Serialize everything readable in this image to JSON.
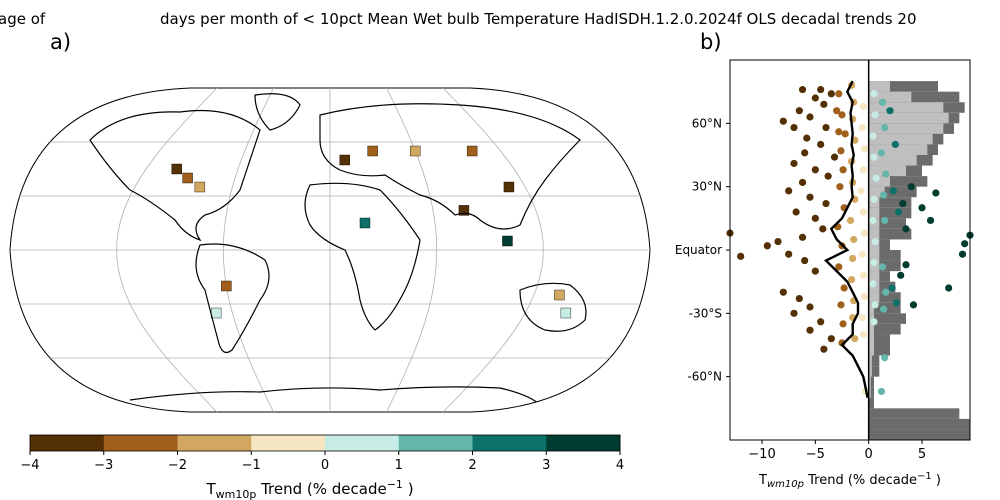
{
  "titles": {
    "left_fragment": "age of",
    "main": "days per month of < 10pct Mean Wet bulb Temperature HadISDH.1.2.0.2024f OLS decadal trends 20"
  },
  "panels": {
    "a": "a)",
    "b": "b)"
  },
  "colors": {
    "bins": [
      "#543005",
      "#a05f1a",
      "#d2a860",
      "#f6e6c3",
      "#c7ebe5",
      "#64b5aa",
      "#0c7168",
      "#003c30"
    ],
    "land_coast": "#000000",
    "grid": "#b0b0b0",
    "hist_dark": "#6b6b6b",
    "hist_light": "#bfbfbf"
  },
  "chart_data": [
    {
      "type": "heatmap",
      "panel": "a)",
      "description_of_content": "Gridded global map of decadal trends",
      "colorbar": {
        "ticks": [
          "−4",
          "−3",
          "−2",
          "−1",
          "0",
          "1",
          "2",
          "3",
          "4"
        ],
        "bounds": [
          -4,
          -3,
          -2,
          -1,
          0,
          1,
          2,
          3,
          4
        ],
        "label_main": "T",
        "label_sub": "wm10p",
        "label_rest": " Trend (% decade",
        "label_sup": "−1",
        "label_end": " )"
      },
      "sample_cells": [
        {
          "lon": -100,
          "lat": 45,
          "value": -3.5
        },
        {
          "lon": -90,
          "lat": 40,
          "value": -2.5
        },
        {
          "lon": -80,
          "lat": 35,
          "value": -1.5
        },
        {
          "lon": 10,
          "lat": 50,
          "value": -3.5
        },
        {
          "lon": 30,
          "lat": 55,
          "value": -2.5
        },
        {
          "lon": 60,
          "lat": 55,
          "value": -1.5
        },
        {
          "lon": 100,
          "lat": 55,
          "value": -2.5
        },
        {
          "lon": 110,
          "lat": 35,
          "value": -3.5
        },
        {
          "lon": 78,
          "lat": 22,
          "value": -3.5
        },
        {
          "lon": -60,
          "lat": -20,
          "value": -2.5
        },
        {
          "lon": -70,
          "lat": -35,
          "value": 0.5
        },
        {
          "lon": 135,
          "lat": -25,
          "value": -1.5
        },
        {
          "lon": 145,
          "lat": -35,
          "value": 0.5
        },
        {
          "lon": 20,
          "lat": 15,
          "value": 2.5
        },
        {
          "lon": 100,
          "lat": 5,
          "value": 3.5
        }
      ]
    },
    {
      "type": "scatter",
      "panel": "b)",
      "xlabel_main": "T",
      "xlabel_sub": "wm10p",
      "xlabel_rest": " Trend (% decade",
      "xlabel_sup": "−1",
      "xlabel_end": " )",
      "xlim": [
        -13,
        9.5
      ],
      "ylim": [
        -90,
        90
      ],
      "xticks": [
        {
          "value": -10,
          "label": "−10"
        },
        {
          "value": -5,
          "label": "−5"
        },
        {
          "value": 0,
          "label": "0"
        },
        {
          "value": 5,
          "label": "5"
        }
      ],
      "yticks": [
        {
          "value": 60,
          "label": "60°N"
        },
        {
          "value": 30,
          "label": "30°N"
        },
        {
          "value": 0,
          "label": "Equator"
        },
        {
          "value": -30,
          "label": "-30°S"
        },
        {
          "value": -60,
          "label": "-60°N"
        }
      ],
      "zonal_mean_line": {
        "lat": [
          80,
          75,
          70,
          65,
          60,
          55,
          50,
          45,
          40,
          35,
          30,
          25,
          20,
          15,
          10,
          5,
          0,
          -5,
          -10,
          -15,
          -20,
          -25,
          -30,
          -35,
          -40,
          -45,
          -50,
          -55,
          -60,
          -65,
          -70
        ],
        "x": [
          -1.5,
          -2.0,
          -1.5,
          -1.7,
          -1.6,
          -1.5,
          -1.6,
          -1.4,
          -1.6,
          -1.5,
          -1.6,
          -1.5,
          -2.0,
          -2.5,
          -3.5,
          -3.0,
          -2.0,
          -4.0,
          -3.0,
          -2.0,
          -1.5,
          -1.0,
          -1.0,
          -1.5,
          -1.5,
          -2.5,
          -1.5,
          -1.0,
          -0.5,
          -0.3,
          -0.1
        ]
      },
      "histogram": {
        "dark_lat_bins": [
          [
            80,
            75
          ],
          [
            75,
            70
          ],
          [
            70,
            65
          ],
          [
            65,
            60
          ],
          [
            60,
            55
          ],
          [
            55,
            50
          ],
          [
            50,
            45
          ],
          [
            45,
            40
          ],
          [
            40,
            35
          ],
          [
            35,
            30
          ],
          [
            30,
            25
          ],
          [
            25,
            20
          ],
          [
            20,
            15
          ],
          [
            15,
            10
          ],
          [
            10,
            5
          ],
          [
            5,
            0
          ],
          [
            0,
            -5
          ],
          [
            -5,
            -10
          ],
          [
            -10,
            -15
          ],
          [
            -15,
            -20
          ],
          [
            -20,
            -25
          ],
          [
            -25,
            -30
          ],
          [
            -30,
            -35
          ],
          [
            -35,
            -40
          ],
          [
            -40,
            -45
          ],
          [
            -45,
            -50
          ],
          [
            -50,
            -55
          ],
          [
            -55,
            -60
          ],
          [
            -60,
            -65
          ],
          [
            -65,
            -70
          ],
          [
            -70,
            -75
          ],
          [
            -75,
            -80
          ],
          [
            -80,
            -85
          ],
          [
            -85,
            -90
          ]
        ],
        "dark_x": [
          6.5,
          8.5,
          9.0,
          8.5,
          8.0,
          7.0,
          6.5,
          6.0,
          5.0,
          5.5,
          4.5,
          4.0,
          4.0,
          3.5,
          4.0,
          2.0,
          3.0,
          3.0,
          2.0,
          2.5,
          3.0,
          3.0,
          3.5,
          3.0,
          2.0,
          2.0,
          1.0,
          1.0,
          0.5,
          0.5,
          0.5,
          8.5,
          9.5,
          9.5
        ],
        "light_x": [
          2.0,
          4.0,
          7.0,
          7.5,
          7.0,
          6.0,
          5.5,
          4.5,
          3.5,
          2.0,
          1.5,
          1.0,
          1.0,
          1.0,
          1.0,
          1.0,
          1.0,
          1.0,
          1.0,
          1.0,
          1.0,
          0.5,
          0.5,
          0.5,
          0.5,
          0.5,
          0.3,
          0.3,
          0.2,
          0.2,
          0,
          0,
          0,
          0
        ]
      },
      "points": [
        {
          "x": -6.2,
          "y": 76
        },
        {
          "x": -4.5,
          "y": 76
        },
        {
          "x": -3.5,
          "y": 74
        },
        {
          "x": -5.0,
          "y": 72
        },
        {
          "x": -4.2,
          "y": 69
        },
        {
          "x": -6.5,
          "y": 66
        },
        {
          "x": -3.0,
          "y": 66
        },
        {
          "x": -8.0,
          "y": 61
        },
        {
          "x": -5.5,
          "y": 63
        },
        {
          "x": -7.0,
          "y": 58
        },
        {
          "x": -4.0,
          "y": 58
        },
        {
          "x": -2.8,
          "y": 56
        },
        {
          "x": -5.8,
          "y": 53
        },
        {
          "x": -4.5,
          "y": 50
        },
        {
          "x": -6.0,
          "y": 46
        },
        {
          "x": -3.2,
          "y": 44
        },
        {
          "x": -7.0,
          "y": 41
        },
        {
          "x": -5.0,
          "y": 38
        },
        {
          "x": -3.8,
          "y": 35
        },
        {
          "x": -6.2,
          "y": 32
        },
        {
          "x": -7.5,
          "y": 28
        },
        {
          "x": -5.5,
          "y": 25
        },
        {
          "x": -4.0,
          "y": 22
        },
        {
          "x": -6.8,
          "y": 18
        },
        {
          "x": -5.0,
          "y": 15
        },
        {
          "x": -4.3,
          "y": 10
        },
        {
          "x": -6.2,
          "y": 6
        },
        {
          "x": -8.5,
          "y": 4
        },
        {
          "x": -13.0,
          "y": 8
        },
        {
          "x": -12.0,
          "y": -3
        },
        {
          "x": -9.5,
          "y": 2
        },
        {
          "x": -7.5,
          "y": -2
        },
        {
          "x": -6.0,
          "y": -5
        },
        {
          "x": -5.0,
          "y": -10
        },
        {
          "x": -8.0,
          "y": -20
        },
        {
          "x": -6.5,
          "y": -23
        },
        {
          "x": -5.5,
          "y": -27
        },
        {
          "x": -7.0,
          "y": -30
        },
        {
          "x": -4.5,
          "y": -34
        },
        {
          "x": -5.5,
          "y": -38
        },
        {
          "x": -3.5,
          "y": -42
        },
        {
          "x": -4.2,
          "y": -47
        },
        {
          "x": -2.8,
          "y": 74
        },
        {
          "x": -2.5,
          "y": 64
        },
        {
          "x": -2.2,
          "y": 55
        },
        {
          "x": -2.6,
          "y": 47
        },
        {
          "x": -2.4,
          "y": 38
        },
        {
          "x": -2.7,
          "y": 30
        },
        {
          "x": -2.3,
          "y": 20
        },
        {
          "x": -2.9,
          "y": 11
        },
        {
          "x": -2.5,
          "y": 2
        },
        {
          "x": -2.8,
          "y": -8
        },
        {
          "x": -2.3,
          "y": -18
        },
        {
          "x": -2.6,
          "y": -26
        },
        {
          "x": -2.4,
          "y": -35
        },
        {
          "x": -2.5,
          "y": -44
        },
        {
          "x": -1.6,
          "y": 78
        },
        {
          "x": -1.4,
          "y": 70
        },
        {
          "x": -1.5,
          "y": 62
        },
        {
          "x": -1.3,
          "y": 52
        },
        {
          "x": -1.6,
          "y": 42
        },
        {
          "x": -1.5,
          "y": 32
        },
        {
          "x": -1.3,
          "y": 24
        },
        {
          "x": -1.7,
          "y": 14
        },
        {
          "x": -1.4,
          "y": 5
        },
        {
          "x": -1.5,
          "y": -4
        },
        {
          "x": -1.6,
          "y": -14
        },
        {
          "x": -1.4,
          "y": -24
        },
        {
          "x": -1.5,
          "y": -32
        },
        {
          "x": -1.3,
          "y": -42
        },
        {
          "x": -0.3,
          "y": -67
        },
        {
          "x": -0.5,
          "y": 68
        },
        {
          "x": -0.6,
          "y": 58
        },
        {
          "x": -0.4,
          "y": 48
        },
        {
          "x": -0.5,
          "y": 38
        },
        {
          "x": -0.7,
          "y": 28
        },
        {
          "x": -0.5,
          "y": 18
        },
        {
          "x": -0.4,
          "y": 8
        },
        {
          "x": -0.6,
          "y": -2
        },
        {
          "x": -0.5,
          "y": -12
        },
        {
          "x": -0.4,
          "y": -22
        },
        {
          "x": -0.6,
          "y": -32
        },
        {
          "x": -0.5,
          "y": -40
        },
        {
          "x": 0.5,
          "y": 74
        },
        {
          "x": 0.6,
          "y": 64
        },
        {
          "x": 0.4,
          "y": 54
        },
        {
          "x": 0.5,
          "y": 44
        },
        {
          "x": 0.7,
          "y": 34
        },
        {
          "x": 0.5,
          "y": 24
        },
        {
          "x": 0.4,
          "y": 14
        },
        {
          "x": 0.6,
          "y": 4
        },
        {
          "x": 0.5,
          "y": -6
        },
        {
          "x": 0.4,
          "y": -16
        },
        {
          "x": 0.6,
          "y": -26
        },
        {
          "x": 0.5,
          "y": -34
        },
        {
          "x": 1.3,
          "y": 70
        },
        {
          "x": 1.5,
          "y": 58
        },
        {
          "x": 1.2,
          "y": 46
        },
        {
          "x": 1.6,
          "y": 36
        },
        {
          "x": 1.4,
          "y": 26
        },
        {
          "x": 1.5,
          "y": 14
        },
        {
          "x": 1.3,
          "y": -8
        },
        {
          "x": 1.6,
          "y": -20
        },
        {
          "x": 1.4,
          "y": -28
        },
        {
          "x": 1.5,
          "y": -51
        },
        {
          "x": 1.2,
          "y": -67
        },
        {
          "x": 2.0,
          "y": 66
        },
        {
          "x": 2.5,
          "y": 50
        },
        {
          "x": 2.3,
          "y": 28
        },
        {
          "x": 2.8,
          "y": 18
        },
        {
          "x": 2.2,
          "y": -18
        },
        {
          "x": 2.6,
          "y": -25
        },
        {
          "x": 3.2,
          "y": 22
        },
        {
          "x": 3.5,
          "y": 10
        },
        {
          "x": 3.0,
          "y": -12
        },
        {
          "x": 4.0,
          "y": 30
        },
        {
          "x": 6.3,
          "y": 27
        },
        {
          "x": 5.8,
          "y": 14
        },
        {
          "x": 5.0,
          "y": 20
        },
        {
          "x": 3.5,
          "y": -7
        },
        {
          "x": 4.2,
          "y": -26
        },
        {
          "x": 7.5,
          "y": -18
        },
        {
          "x": 9.0,
          "y": 3
        },
        {
          "x": 9.5,
          "y": 7
        },
        {
          "x": 8.8,
          "y": -2
        }
      ]
    }
  ]
}
